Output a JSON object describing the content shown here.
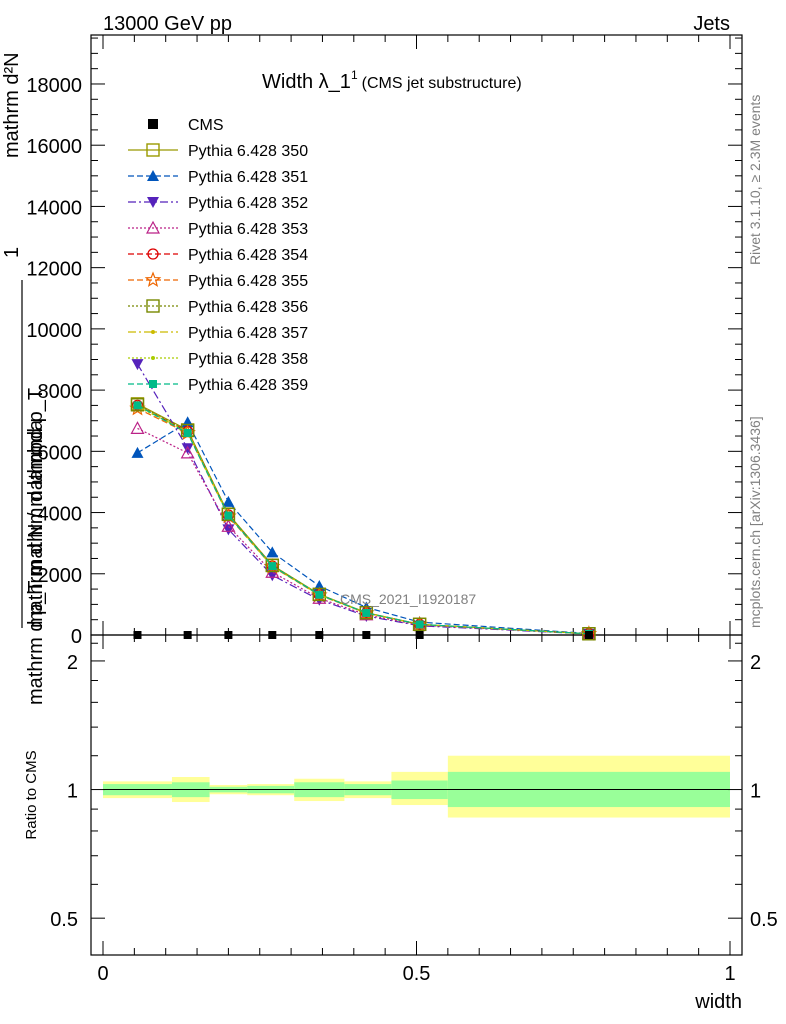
{
  "header": {
    "left": "13000 GeV pp",
    "right": "Jets"
  },
  "title": {
    "main": "Width λ_1",
    "sup": "1",
    "sub": "(CMS jet substructure)"
  },
  "side_labels": {
    "top": "Rivet 3.1.10, ≥ 2.3M events",
    "bottom": "mcplots.cern.ch [arXiv:1306.3436]"
  },
  "watermark": "CMS_2021_I1920187",
  "ylabel_main": {
    "numerator": "mathrm d²N",
    "denominator": "mathrm d p_T mathrm d lambda",
    "lhs_num": "1",
    "lhs_den": "mathrm d N / mathrmd p_T"
  },
  "ylabel_ratio": "Ratio to CMS",
  "xlabel": "width",
  "colors": {
    "ref": "#000000",
    "band_inner": "#99ff99",
    "band_outer": "#ffff99"
  },
  "chart_data": [
    {
      "type": "line",
      "panel": "main",
      "xlim": [
        0,
        1
      ],
      "ylim": [
        0,
        19600
      ],
      "yticks": [
        0,
        2000,
        4000,
        6000,
        8000,
        10000,
        12000,
        14000,
        16000,
        18000
      ],
      "ytick_labels": [
        "0",
        "2000",
        "4000",
        "6000",
        "8000",
        "10000",
        "12000",
        "14000",
        "16000",
        "18000"
      ],
      "x": [
        0.055,
        0.135,
        0.2,
        0.27,
        0.345,
        0.42,
        0.505,
        0.775
      ],
      "reference": {
        "name": "CMS",
        "values": [
          0,
          0,
          0,
          0,
          0,
          0,
          0,
          0
        ]
      },
      "series": [
        {
          "name": "Pythia 6.428 350",
          "color": "#999900",
          "dash": "",
          "marker": "square-open",
          "values": [
            7550,
            6700,
            3950,
            2280,
            1330,
            730,
            350,
            40
          ]
        },
        {
          "name": "Pythia 6.428 351",
          "color": "#0055bb",
          "dash": "6,3",
          "marker": "triangle-filled",
          "values": [
            5950,
            6950,
            4350,
            2700,
            1600,
            900,
            420,
            50
          ]
        },
        {
          "name": "Pythia 6.428 352",
          "color": "#5522bb",
          "dash": "8,3,2,3",
          "marker": "triangle-down-filled",
          "values": [
            8850,
            6100,
            3450,
            1950,
            1150,
            620,
            300,
            35
          ]
        },
        {
          "name": "Pythia 6.428 353",
          "color": "#bb2288",
          "dash": "2,2",
          "marker": "triangle-open",
          "values": [
            6750,
            5950,
            3550,
            2050,
            1200,
            660,
            320,
            38
          ]
        },
        {
          "name": "Pythia 6.428 354",
          "color": "#dd0000",
          "dash": "6,3",
          "marker": "circle-open",
          "values": [
            7500,
            6650,
            3920,
            2250,
            1320,
            720,
            345,
            40
          ]
        },
        {
          "name": "Pythia 6.428 355",
          "color": "#ee6600",
          "dash": "6,3",
          "marker": "star-open",
          "values": [
            7400,
            6600,
            3880,
            2230,
            1300,
            715,
            340,
            40
          ]
        },
        {
          "name": "Pythia 6.428 356",
          "color": "#778800",
          "dash": "2,2",
          "marker": "square-open",
          "values": [
            7520,
            6680,
            3940,
            2270,
            1325,
            728,
            348,
            40
          ]
        },
        {
          "name": "Pythia 6.428 357",
          "color": "#ccbb00",
          "dash": "8,3,2,3",
          "marker": "dot",
          "values": [
            7480,
            6640,
            3910,
            2245,
            1315,
            722,
            345,
            40
          ]
        },
        {
          "name": "Pythia 6.428 358",
          "color": "#aacc00",
          "dash": "2,2",
          "marker": "dot",
          "values": [
            7460,
            6620,
            3900,
            2240,
            1310,
            720,
            343,
            40
          ]
        },
        {
          "name": "Pythia 6.428 359",
          "color": "#00bb88",
          "dash": "6,3",
          "marker": "square-filled",
          "values": [
            7500,
            6600,
            3900,
            2250,
            1315,
            722,
            345,
            40
          ]
        }
      ]
    },
    {
      "type": "area",
      "panel": "ratio",
      "xlim": [
        0,
        1
      ],
      "ylim": [
        0.41,
        2.3
      ],
      "yscale": "log",
      "yticks": [
        0.5,
        1,
        2
      ],
      "ytick_labels": [
        "0.5",
        "1",
        "2"
      ],
      "xticks": [
        0,
        0.5,
        1
      ],
      "xtick_labels": [
        "0",
        "0.5",
        "1"
      ],
      "bins": [
        0,
        0.11,
        0.17,
        0.23,
        0.305,
        0.385,
        0.46,
        0.55,
        1
      ],
      "inner_band": [
        [
          0.97,
          1.03
        ],
        [
          0.96,
          1.04
        ],
        [
          0.985,
          1.015
        ],
        [
          0.98,
          1.02
        ],
        [
          0.96,
          1.04
        ],
        [
          0.97,
          1.03
        ],
        [
          0.95,
          1.05
        ],
        [
          0.91,
          1.1
        ]
      ],
      "outer_band": [
        [
          0.955,
          1.045
        ],
        [
          0.935,
          1.07
        ],
        [
          0.975,
          1.025
        ],
        [
          0.97,
          1.03
        ],
        [
          0.94,
          1.06
        ],
        [
          0.955,
          1.045
        ],
        [
          0.92,
          1.1
        ],
        [
          0.86,
          1.2
        ]
      ]
    }
  ]
}
